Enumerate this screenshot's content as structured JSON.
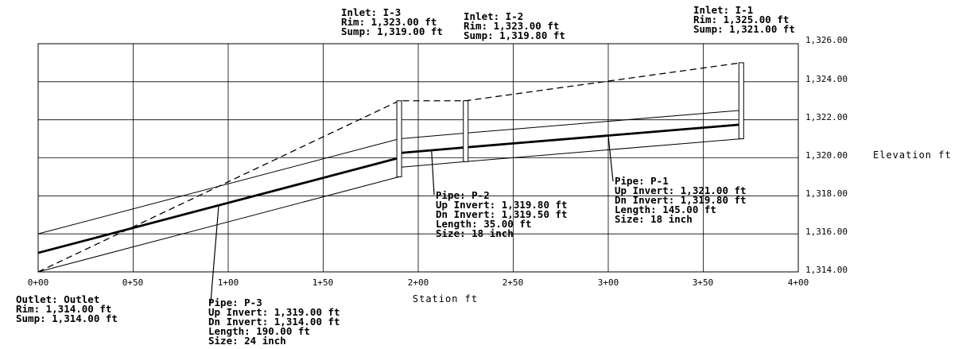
{
  "axes": {
    "elevation_title": "Elevation  ft",
    "station_title": "Station  ft",
    "elevation_ticks": [
      "1,326.00",
      "1,324.00",
      "1,322.00",
      "1,320.00",
      "1,318.00",
      "1,316.00",
      "1,314.00"
    ],
    "station_ticks": [
      "0+00",
      "0+50",
      "1+00",
      "1+50",
      "2+00",
      "2+50",
      "3+00",
      "3+50",
      "4+00"
    ],
    "x_range": [
      0,
      400
    ],
    "y_range": [
      1314,
      1326
    ],
    "grid": true
  },
  "structures": [
    {
      "id": "outlet",
      "name_line": "Outlet: Outlet",
      "rim_line": "Rim: 1,314.00 ft",
      "sump_line": "Sump: 1,314.00 ft",
      "station": 0,
      "rim": 1314.0,
      "sump": 1314.0
    },
    {
      "id": "i3",
      "name_line": "Inlet: I-3",
      "rim_line": "Rim: 1,323.00 ft",
      "sump_line": "Sump: 1,319.00 ft",
      "station": 190,
      "rim": 1323.0,
      "sump": 1319.0
    },
    {
      "id": "i2",
      "name_line": "Inlet: I-2",
      "rim_line": "Rim: 1,323.00 ft",
      "sump_line": "Sump: 1,319.80 ft",
      "station": 225,
      "rim": 1323.0,
      "sump": 1319.8
    },
    {
      "id": "i1",
      "name_line": "Inlet: I-1",
      "rim_line": "Rim: 1,325.00 ft",
      "sump_line": "Sump: 1,321.00 ft",
      "station": 370,
      "rim": 1325.0,
      "sump": 1321.0
    }
  ],
  "pipes": [
    {
      "id": "p3",
      "pipe_line": "Pipe: P-3",
      "up_line": "Up Invert: 1,319.00 ft",
      "dn_line": "Dn Invert: 1,314.00 ft",
      "length_line": "Length: 190.00 ft",
      "size_line": "Size: 24 inch",
      "from_station": 0,
      "to_station": 190,
      "dn_invert": 1314.0,
      "up_invert": 1319.0,
      "diameter_ft": 2.0
    },
    {
      "id": "p2",
      "pipe_line": "Pipe: P-2",
      "up_line": "Up Invert: 1,319.80 ft",
      "dn_line": "Dn Invert: 1,319.50 ft",
      "length_line": "Length: 35.00 ft",
      "size_line": "Size: 18 inch",
      "from_station": 190,
      "to_station": 225,
      "dn_invert": 1319.5,
      "up_invert": 1319.8,
      "diameter_ft": 1.5
    },
    {
      "id": "p1",
      "pipe_line": "Pipe: P-1",
      "up_line": "Up Invert: 1,321.00 ft",
      "dn_line": "Dn Invert: 1,319.80 ft",
      "length_line": "Length: 145.00 ft",
      "size_line": "Size: 18 inch",
      "from_station": 225,
      "to_station": 370,
      "dn_invert": 1319.8,
      "up_invert": 1321.0,
      "diameter_ft": 1.5
    }
  ]
}
